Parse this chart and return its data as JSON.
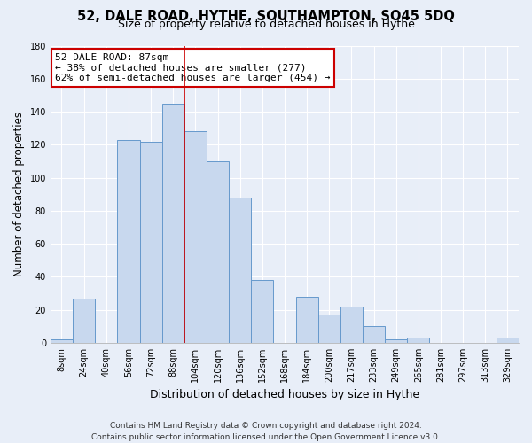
{
  "title": "52, DALE ROAD, HYTHE, SOUTHAMPTON, SO45 5DQ",
  "subtitle": "Size of property relative to detached houses in Hythe",
  "xlabel": "Distribution of detached houses by size in Hythe",
  "ylabel": "Number of detached properties",
  "bar_labels": [
    "8sqm",
    "24sqm",
    "40sqm",
    "56sqm",
    "72sqm",
    "88sqm",
    "104sqm",
    "120sqm",
    "136sqm",
    "152sqm",
    "168sqm",
    "184sqm",
    "200sqm",
    "217sqm",
    "233sqm",
    "249sqm",
    "265sqm",
    "281sqm",
    "297sqm",
    "313sqm",
    "329sqm"
  ],
  "bar_values": [
    2,
    27,
    0,
    123,
    122,
    145,
    128,
    110,
    88,
    38,
    0,
    28,
    17,
    22,
    10,
    2,
    3,
    0,
    0,
    0,
    3
  ],
  "bar_color": "#c8d8ee",
  "bar_edge_color": "#6699cc",
  "property_line_index": 5,
  "annotation_title": "52 DALE ROAD: 87sqm",
  "annotation_line1": "← 38% of detached houses are smaller (277)",
  "annotation_line2": "62% of semi-detached houses are larger (454) →",
  "annotation_box_facecolor": "#ffffff",
  "annotation_box_edgecolor": "#cc0000",
  "ylim": [
    0,
    180
  ],
  "yticks": [
    0,
    20,
    40,
    60,
    80,
    100,
    120,
    140,
    160,
    180
  ],
  "footer1": "Contains HM Land Registry data © Crown copyright and database right 2024.",
  "footer2": "Contains public sector information licensed under the Open Government Licence v3.0.",
  "background_color": "#e8eef8",
  "plot_bg_color": "#e8eef8",
  "grid_color": "#ffffff",
  "title_fontsize": 10.5,
  "subtitle_fontsize": 9,
  "tick_fontsize": 7,
  "ylabel_fontsize": 8.5,
  "xlabel_fontsize": 9,
  "annotation_fontsize": 8,
  "footer_fontsize": 6.5
}
